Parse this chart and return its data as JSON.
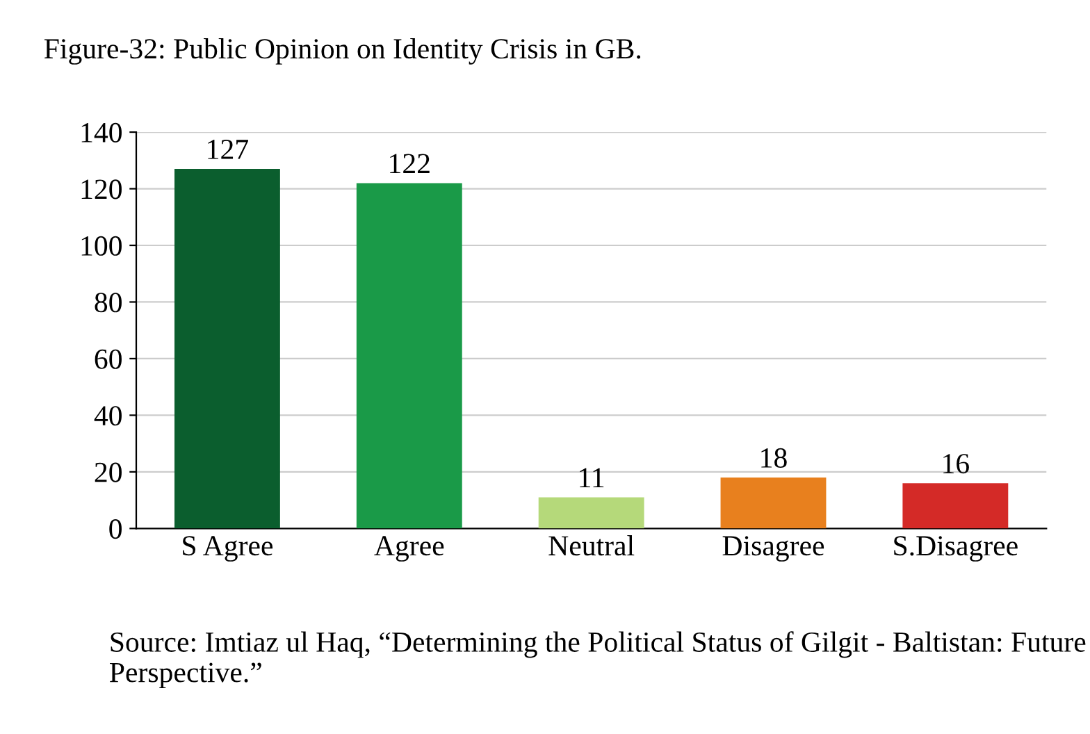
{
  "chart_data": {
    "type": "bar",
    "title": "Figure-32: Public Opinion on Identity Crisis in GB.",
    "categories": [
      "S Agree",
      "Agree",
      "Neutral",
      "Disagree",
      "S.Disagree"
    ],
    "values": [
      127,
      122,
      11,
      18,
      16
    ],
    "colors": [
      "#0b5e2e",
      "#1a9a48",
      "#b5d97a",
      "#e8801e",
      "#d42a27"
    ],
    "ylim": [
      0,
      140
    ],
    "yticks": [
      0,
      20,
      40,
      60,
      80,
      100,
      120,
      140
    ],
    "grid": "y",
    "data_labels": true,
    "annotations": [
      "Source: Imtiaz ul Haq, “Determining the Political Status of Gilgit - Baltistan: Future Perspective.”"
    ]
  }
}
